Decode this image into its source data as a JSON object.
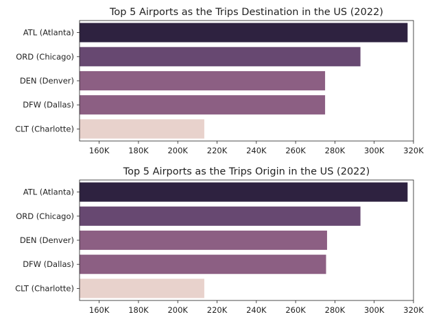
{
  "chart_data": [
    {
      "type": "bar",
      "orientation": "horizontal",
      "title": "Top 5 Airports as the Trips Destination in the US (2022)",
      "categories": [
        "ATL (Atlanta)",
        "ORD (Chicago)",
        "DEN (Denver)",
        "DFW (Dallas)",
        "CLT (Charlotte)"
      ],
      "values": [
        317000,
        293000,
        275000,
        275000,
        213500
      ],
      "colors": [
        "#2e2240",
        "#674871",
        "#8c5f83",
        "#8c5f83",
        "#e8d2cc"
      ],
      "xlim": [
        150000,
        320000
      ],
      "xticks": [
        160000,
        180000,
        200000,
        220000,
        240000,
        260000,
        280000,
        300000,
        320000
      ],
      "xtick_labels": [
        "160K",
        "180K",
        "200K",
        "220K",
        "240K",
        "260K",
        "280K",
        "300K",
        "320K"
      ],
      "xlabel": "",
      "ylabel": "",
      "grid": false
    },
    {
      "type": "bar",
      "orientation": "horizontal",
      "title": "Top 5 Airports as the Trips Origin in the US (2022)",
      "categories": [
        "ATL (Atlanta)",
        "ORD (Chicago)",
        "DEN (Denver)",
        "DFW (Dallas)",
        "CLT (Charlotte)"
      ],
      "values": [
        317000,
        293000,
        276000,
        275500,
        213500
      ],
      "colors": [
        "#2e2240",
        "#674871",
        "#8c5f83",
        "#8c5f83",
        "#e8d2cc"
      ],
      "xlim": [
        150000,
        320000
      ],
      "xticks": [
        160000,
        180000,
        200000,
        220000,
        240000,
        260000,
        280000,
        300000,
        320000
      ],
      "xtick_labels": [
        "160K",
        "180K",
        "200K",
        "220K",
        "240K",
        "260K",
        "280K",
        "300K",
        "320K"
      ],
      "xlabel": "",
      "ylabel": "",
      "grid": false
    }
  ]
}
